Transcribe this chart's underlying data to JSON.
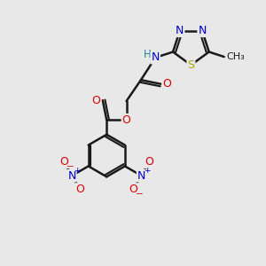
{
  "background_color": "#e8e8e8",
  "bond_color": "#1a1a1a",
  "bond_width": 1.8,
  "atom_colors": {
    "N": "#0000cc",
    "O": "#dd0000",
    "S": "#aaaa00",
    "H": "#228888",
    "C": "#1a1a1a"
  },
  "font_size_atom": 9,
  "font_size_small": 7.5
}
